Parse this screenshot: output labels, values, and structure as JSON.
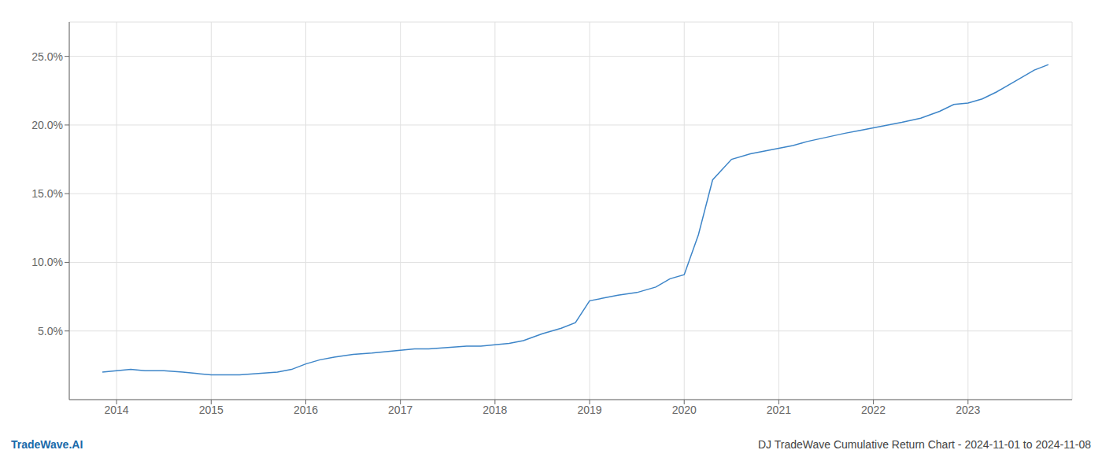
{
  "chart_data": {
    "type": "line",
    "x": [
      2013.85,
      2014.0,
      2014.15,
      2014.3,
      2014.5,
      2014.7,
      2014.85,
      2015.0,
      2015.15,
      2015.3,
      2015.5,
      2015.7,
      2015.85,
      2016.0,
      2016.15,
      2016.3,
      2016.5,
      2016.7,
      2016.85,
      2017.0,
      2017.15,
      2017.3,
      2017.5,
      2017.7,
      2017.85,
      2018.0,
      2018.15,
      2018.3,
      2018.5,
      2018.7,
      2018.85,
      2019.0,
      2019.15,
      2019.3,
      2019.5,
      2019.7,
      2019.85,
      2020.0,
      2020.15,
      2020.3,
      2020.5,
      2020.7,
      2020.85,
      2021.0,
      2021.15,
      2021.3,
      2021.5,
      2021.7,
      2021.85,
      2022.0,
      2022.15,
      2022.3,
      2022.5,
      2022.7,
      2022.85,
      2023.0,
      2023.15,
      2023.3,
      2023.5,
      2023.7,
      2023.85
    ],
    "values": [
      0.02,
      0.021,
      0.022,
      0.021,
      0.021,
      0.02,
      0.019,
      0.018,
      0.018,
      0.018,
      0.019,
      0.02,
      0.022,
      0.026,
      0.029,
      0.031,
      0.033,
      0.034,
      0.035,
      0.036,
      0.037,
      0.037,
      0.038,
      0.039,
      0.039,
      0.04,
      0.041,
      0.043,
      0.048,
      0.052,
      0.056,
      0.072,
      0.074,
      0.076,
      0.078,
      0.082,
      0.088,
      0.091,
      0.12,
      0.16,
      0.175,
      0.179,
      0.181,
      0.183,
      0.185,
      0.188,
      0.191,
      0.194,
      0.196,
      0.198,
      0.2,
      0.202,
      0.205,
      0.21,
      0.215,
      0.216,
      0.219,
      0.224,
      0.232,
      0.24,
      0.244
    ],
    "color": "#3d85c8",
    "xlim": [
      2013.5,
      2024.1
    ],
    "xticks": [
      2014,
      2015,
      2016,
      2017,
      2018,
      2019,
      2020,
      2021,
      2022,
      2023
    ],
    "ylim": [
      0.0,
      0.275
    ],
    "yticks": [
      {
        "value": 0.05,
        "label": "5.0%"
      },
      {
        "value": 0.1,
        "label": "10.0%"
      },
      {
        "value": 0.15,
        "label": "15.0%"
      },
      {
        "value": 0.2,
        "label": "20.0%"
      },
      {
        "value": 0.25,
        "label": "25.0%"
      }
    ],
    "grid": true,
    "annotations": [
      {
        "text": "TradeWave.AI",
        "color": "#1a6aaa"
      },
      {
        "text": "DJ TradeWave Cumulative Return Chart - 2024-11-01 to 2024-11-08",
        "color": "#444444"
      }
    ]
  }
}
